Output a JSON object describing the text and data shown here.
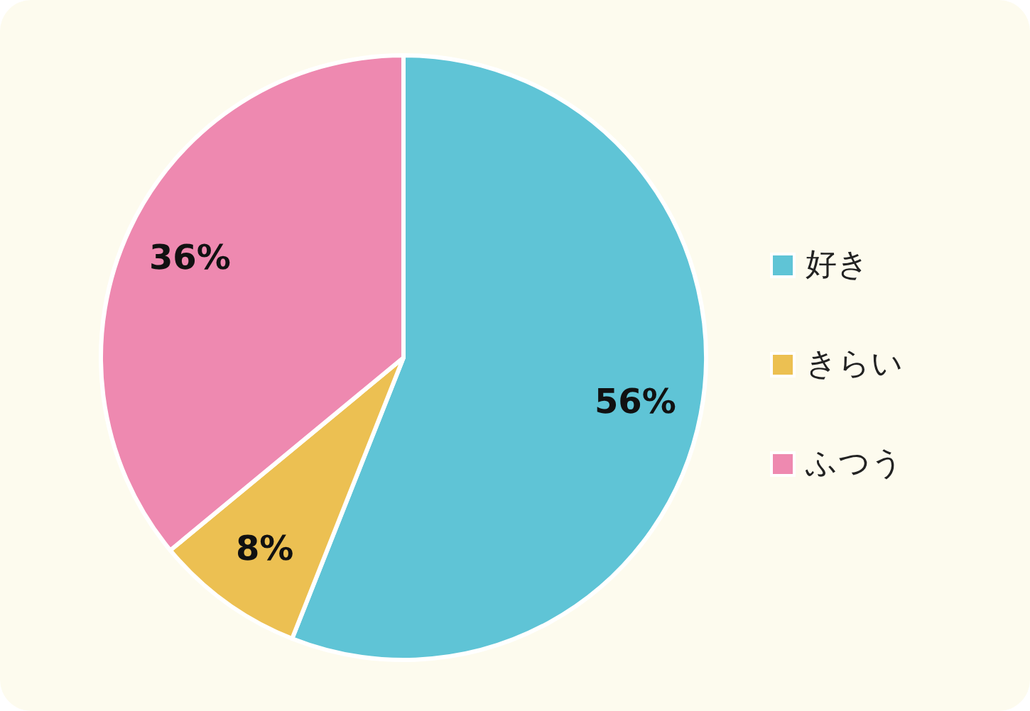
{
  "chart_data": {
    "type": "pie",
    "categories": [
      "好き",
      "きらい",
      "ふつう"
    ],
    "values": [
      56,
      8,
      36
    ],
    "colors": [
      "#5fc4d6",
      "#ecc052",
      "#ee89b0"
    ],
    "value_labels": [
      "56%",
      "8%",
      "36%"
    ],
    "legend": "right"
  }
}
